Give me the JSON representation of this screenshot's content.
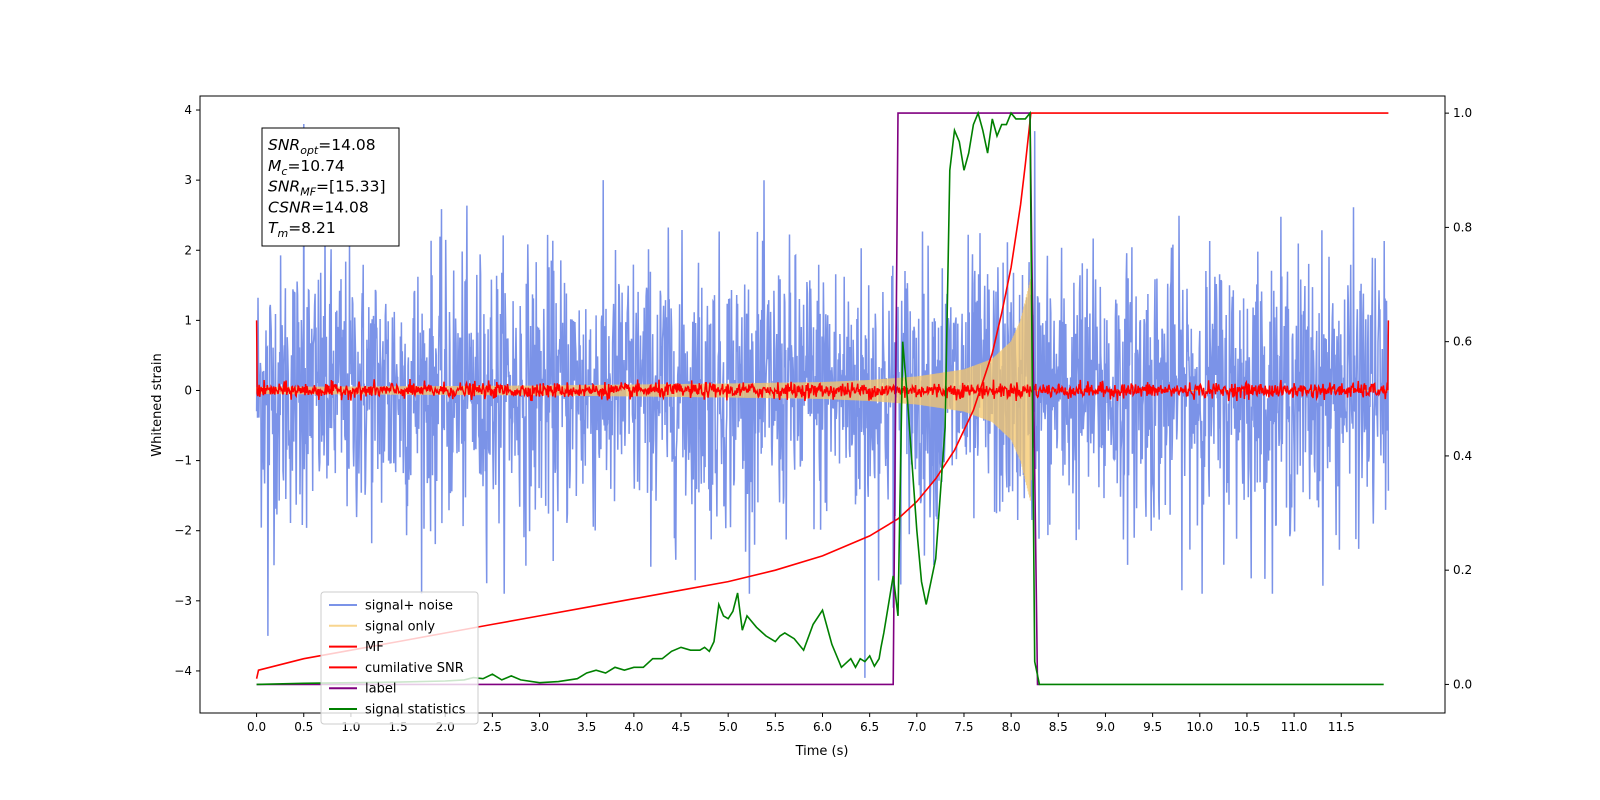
{
  "chart_data": {
    "type": "line",
    "title": "",
    "xlabel": "Time (s)",
    "ylabel": "Whitened strain",
    "xlim": [
      -0.6,
      12.6
    ],
    "ylim": [
      -4.6,
      4.2
    ],
    "y2lim": [
      -0.05,
      1.03
    ],
    "xticks": [
      "0.0",
      "0.5",
      "1.0",
      "1.5",
      "2.0",
      "2.5",
      "3.0",
      "3.5",
      "4.0",
      "4.5",
      "5.0",
      "5.5",
      "6.0",
      "6.5",
      "7.0",
      "7.5",
      "8.0",
      "8.5",
      "9.0",
      "9.5",
      "10.0",
      "10.5",
      "11.0",
      "11.5"
    ],
    "yticks": [
      "4",
      "3",
      "2",
      "1",
      "0",
      "−1",
      "−2",
      "−3",
      "−4"
    ],
    "y2ticks": [
      "0.0",
      "0.2",
      "0.4",
      "0.6",
      "0.8",
      "1.0"
    ],
    "grid": false,
    "legend_position": "lower-left",
    "annotation": {
      "lines": [
        {
          "sym": "SNR",
          "sub": "opt",
          "value": "=14.08"
        },
        {
          "sym": "M",
          "sub": "c",
          "value": "=10.74"
        },
        {
          "sym": "SNR",
          "sub": "MF",
          "value": "=[15.33]"
        },
        {
          "sym": "CSNR",
          "sub": "",
          "value": "=14.08"
        },
        {
          "sym": "T",
          "sub": "m",
          "value": "=8.21"
        }
      ]
    },
    "series": [
      {
        "name": "signal+ noise",
        "color": "#7b93e8",
        "axis": "left",
        "kind": "noise",
        "x_range": [
          0.0,
          12.0
        ],
        "envelope_low": -2.9,
        "envelope_high": 3.0,
        "notable_spikes": [
          [
            0.5,
            3.8
          ],
          [
            0.12,
            -3.5
          ],
          [
            6.45,
            -4.1
          ],
          [
            6.75,
            -3.1
          ],
          [
            8.25,
            3.7
          ]
        ]
      },
      {
        "name": "signal only",
        "color": "#f5c76a",
        "axis": "left",
        "kind": "chirp",
        "x": [
          0.0,
          3.0,
          5.0,
          6.0,
          6.5,
          7.0,
          7.5,
          7.8,
          8.0,
          8.1,
          8.2,
          8.21,
          8.22,
          12.0
        ],
        "amplitude": [
          0.05,
          0.07,
          0.1,
          0.12,
          0.15,
          0.2,
          0.3,
          0.45,
          0.7,
          1.0,
          1.55,
          1.6,
          0.0,
          0.0
        ]
      },
      {
        "name": "MF",
        "color": "#ff0000",
        "axis": "left",
        "kind": "noise",
        "x_range": [
          0.0,
          12.0
        ],
        "envelope_low": -0.15,
        "envelope_high": 0.2,
        "edge_value": 1.0
      },
      {
        "name": "cumilative SNR",
        "color": "#ff0000",
        "axis": "right",
        "x": [
          0.0,
          0.02,
          0.5,
          1.0,
          1.5,
          2.0,
          2.5,
          3.0,
          3.5,
          4.0,
          4.5,
          5.0,
          5.5,
          6.0,
          6.5,
          6.8,
          7.0,
          7.2,
          7.4,
          7.6,
          7.8,
          7.9,
          8.0,
          8.1,
          8.15,
          8.21,
          12.0
        ],
        "y": [
          0.01,
          0.025,
          0.045,
          0.06,
          0.075,
          0.09,
          0.105,
          0.12,
          0.135,
          0.15,
          0.165,
          0.18,
          0.2,
          0.225,
          0.26,
          0.29,
          0.32,
          0.36,
          0.41,
          0.48,
          0.58,
          0.65,
          0.73,
          0.84,
          0.91,
          1.0,
          1.0
        ]
      },
      {
        "name": "label",
        "color": "#800080",
        "axis": "right",
        "x": [
          0.0,
          6.75,
          6.8,
          8.2,
          8.28,
          8.3
        ],
        "y": [
          0.0,
          0.0,
          1.0,
          1.0,
          0.0,
          0.0
        ]
      },
      {
        "name": "signal statistics",
        "color": "#008000",
        "axis": "right",
        "x": [
          0.0,
          0.5,
          1.0,
          1.5,
          2.0,
          2.2,
          2.3,
          2.4,
          2.5,
          2.6,
          2.7,
          2.8,
          3.0,
          3.2,
          3.4,
          3.5,
          3.6,
          3.7,
          3.8,
          3.9,
          4.0,
          4.1,
          4.2,
          4.3,
          4.4,
          4.5,
          4.6,
          4.7,
          4.75,
          4.8,
          4.85,
          4.9,
          4.95,
          5.0,
          5.05,
          5.1,
          5.15,
          5.2,
          5.3,
          5.4,
          5.5,
          5.55,
          5.6,
          5.7,
          5.8,
          5.9,
          6.0,
          6.1,
          6.2,
          6.3,
          6.35,
          6.4,
          6.45,
          6.5,
          6.55,
          6.6,
          6.62,
          6.65,
          6.7,
          6.75,
          6.8,
          6.85,
          6.9,
          7.0,
          7.05,
          7.1,
          7.2,
          7.3,
          7.35,
          7.4,
          7.45,
          7.5,
          7.55,
          7.6,
          7.65,
          7.7,
          7.75,
          7.8,
          7.85,
          7.9,
          7.95,
          8.0,
          8.05,
          8.1,
          8.15,
          8.2,
          8.25,
          8.3,
          8.35,
          8.5,
          9.0,
          10.0,
          11.0,
          11.95
        ],
        "y": [
          0.0,
          0.002,
          0.003,
          0.004,
          0.006,
          0.008,
          0.012,
          0.01,
          0.018,
          0.008,
          0.015,
          0.008,
          0.003,
          0.005,
          0.01,
          0.02,
          0.025,
          0.02,
          0.03,
          0.025,
          0.03,
          0.03,
          0.045,
          0.045,
          0.058,
          0.065,
          0.06,
          0.06,
          0.065,
          0.058,
          0.075,
          0.14,
          0.12,
          0.115,
          0.128,
          0.16,
          0.095,
          0.12,
          0.1,
          0.085,
          0.075,
          0.085,
          0.09,
          0.08,
          0.06,
          0.105,
          0.13,
          0.07,
          0.03,
          0.045,
          0.03,
          0.045,
          0.04,
          0.05,
          0.032,
          0.045,
          0.065,
          0.09,
          0.14,
          0.19,
          0.12,
          0.6,
          0.5,
          0.27,
          0.18,
          0.14,
          0.22,
          0.45,
          0.9,
          0.97,
          0.95,
          0.9,
          0.93,
          0.98,
          1.0,
          0.97,
          0.93,
          0.99,
          0.96,
          0.98,
          0.98,
          1.0,
          0.99,
          0.99,
          0.99,
          1.0,
          0.04,
          0.0,
          0.0,
          0.0,
          0.0,
          0.0,
          0.0,
          0.0
        ]
      }
    ]
  }
}
